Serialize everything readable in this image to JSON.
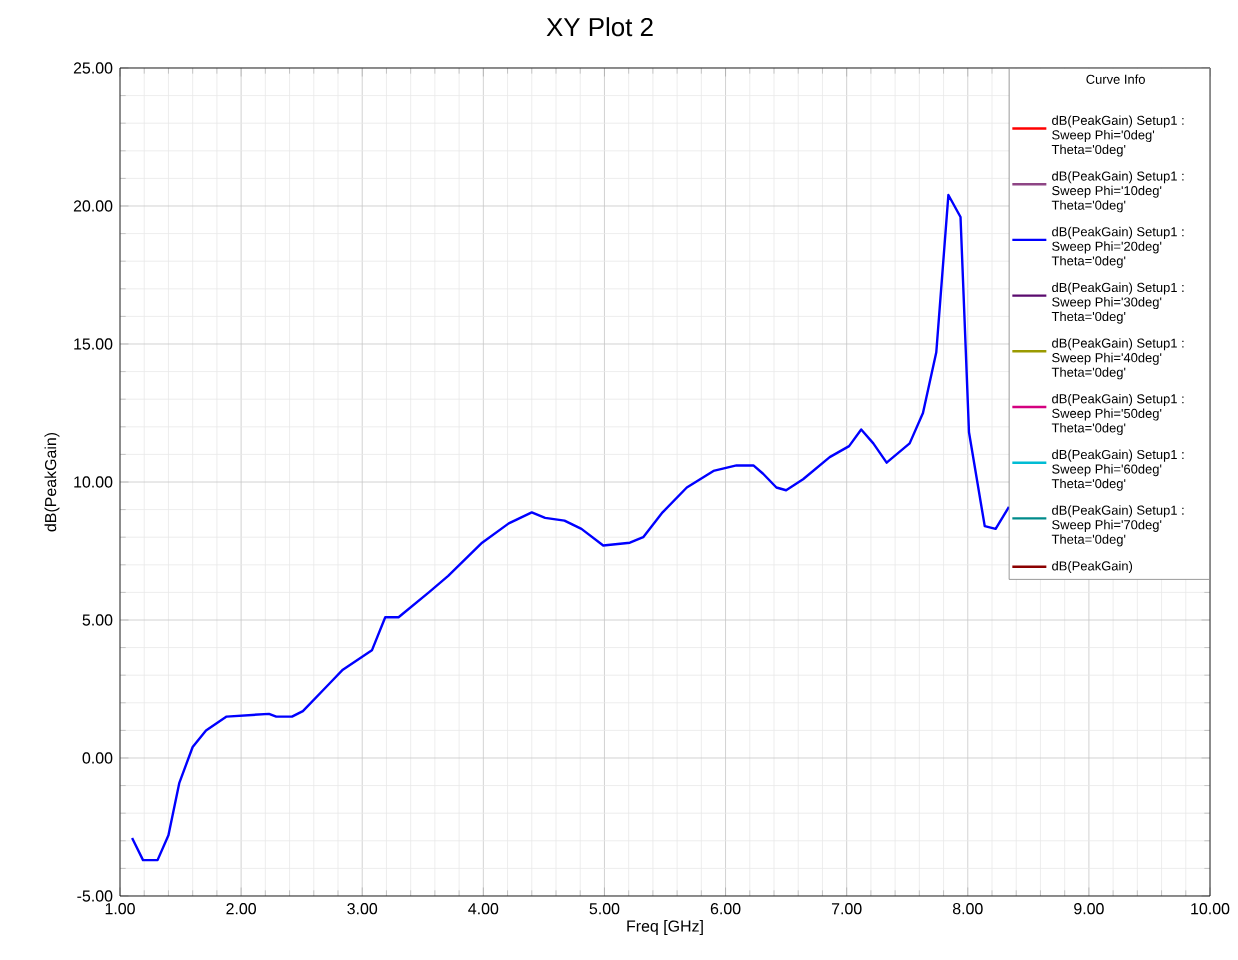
{
  "chart_data": {
    "type": "line",
    "title": "XY Plot 2",
    "xlabel": "Freq [GHz]",
    "ylabel": "dB(PeakGain)",
    "legend_title": "Curve Info",
    "legend": "top right",
    "grid": true,
    "marker": "none",
    "line_style": "solid",
    "xlim": [
      1,
      10
    ],
    "ylim": [
      -5,
      25
    ],
    "xticks": [
      {
        "value": 1,
        "label": "1.00"
      },
      {
        "value": 2,
        "label": "2.00"
      },
      {
        "value": 3,
        "label": "3.00"
      },
      {
        "value": 4,
        "label": "4.00"
      },
      {
        "value": 5,
        "label": "5.00"
      },
      {
        "value": 6,
        "label": "6.00"
      },
      {
        "value": 7,
        "label": "7.00"
      },
      {
        "value": 8,
        "label": "8.00"
      },
      {
        "value": 9,
        "label": "9.00"
      },
      {
        "value": 10,
        "label": "10.00"
      }
    ],
    "yticks": [
      {
        "value": -5,
        "label": "-5.00"
      },
      {
        "value": 0,
        "label": "0.00"
      },
      {
        "value": 5,
        "label": "5.00"
      },
      {
        "value": 10,
        "label": "10.00"
      },
      {
        "value": 15,
        "label": "15.00"
      },
      {
        "value": 20,
        "label": "20.00"
      },
      {
        "value": 25,
        "label": "25.00"
      }
    ],
    "series": [
      {
        "name": "dB(PeakGain) Setup1 : Sweep Phi='0deg' Theta='0deg'",
        "color": "#ff0000"
      },
      {
        "name": "dB(PeakGain) Setup1 : Sweep Phi='10deg' Theta='0deg'",
        "color": "#8e4585"
      },
      {
        "name": "dB(PeakGain) Setup1 : Sweep Phi='20deg' Theta='0deg'",
        "color": "#0000ff",
        "x": [
          1.1,
          1.19,
          1.31,
          1.4,
          1.49,
          1.6,
          1.71,
          1.88,
          2.23,
          2.29,
          2.42,
          2.51,
          2.73,
          2.84,
          3.08,
          3.19,
          3.3,
          3.55,
          3.71,
          3.99,
          4.21,
          4.4,
          4.51,
          4.67,
          4.81,
          4.99,
          5.21,
          5.32,
          5.48,
          5.68,
          5.9,
          6.09,
          6.23,
          6.31,
          6.42,
          6.5,
          6.64,
          6.86,
          7.02,
          7.12,
          7.22,
          7.33,
          7.52,
          7.63,
          7.74,
          7.84,
          7.94,
          8.01,
          8.14,
          8.23,
          8.34
        ],
        "values": [
          -2.9,
          -3.7,
          -3.7,
          -2.8,
          -0.9,
          0.4,
          1.0,
          1.5,
          1.6,
          1.5,
          1.5,
          1.7,
          2.7,
          3.2,
          3.9,
          5.1,
          5.1,
          6.0,
          6.6,
          7.8,
          8.5,
          8.9,
          8.7,
          8.6,
          8.3,
          7.7,
          7.8,
          8.0,
          8.9,
          9.8,
          10.4,
          10.6,
          10.6,
          10.3,
          9.8,
          9.7,
          10.1,
          10.9,
          11.3,
          11.9,
          11.4,
          10.7,
          11.4,
          12.5,
          14.7,
          20.4,
          19.6,
          11.8,
          8.4,
          8.3,
          9.1
        ]
      },
      {
        "name": "dB(PeakGain) Setup1 : Sweep Phi='30deg' Theta='0deg'",
        "color": "#5a0a6e"
      },
      {
        "name": "dB(PeakGain) Setup1 : Sweep Phi='40deg' Theta='0deg'",
        "color": "#9a9a00"
      },
      {
        "name": "dB(PeakGain) Setup1 : Sweep Phi='50deg' Theta='0deg'",
        "color": "#d4007f"
      },
      {
        "name": "dB(PeakGain) Setup1 : Sweep Phi='60deg' Theta='0deg'",
        "color": "#00bcd4"
      },
      {
        "name": "dB(PeakGain) Setup1 : Sweep Phi='70deg' Theta='0deg'",
        "color": "#008b8b"
      },
      {
        "name": "dB(PeakGain)",
        "color": "#8b0000"
      }
    ]
  }
}
